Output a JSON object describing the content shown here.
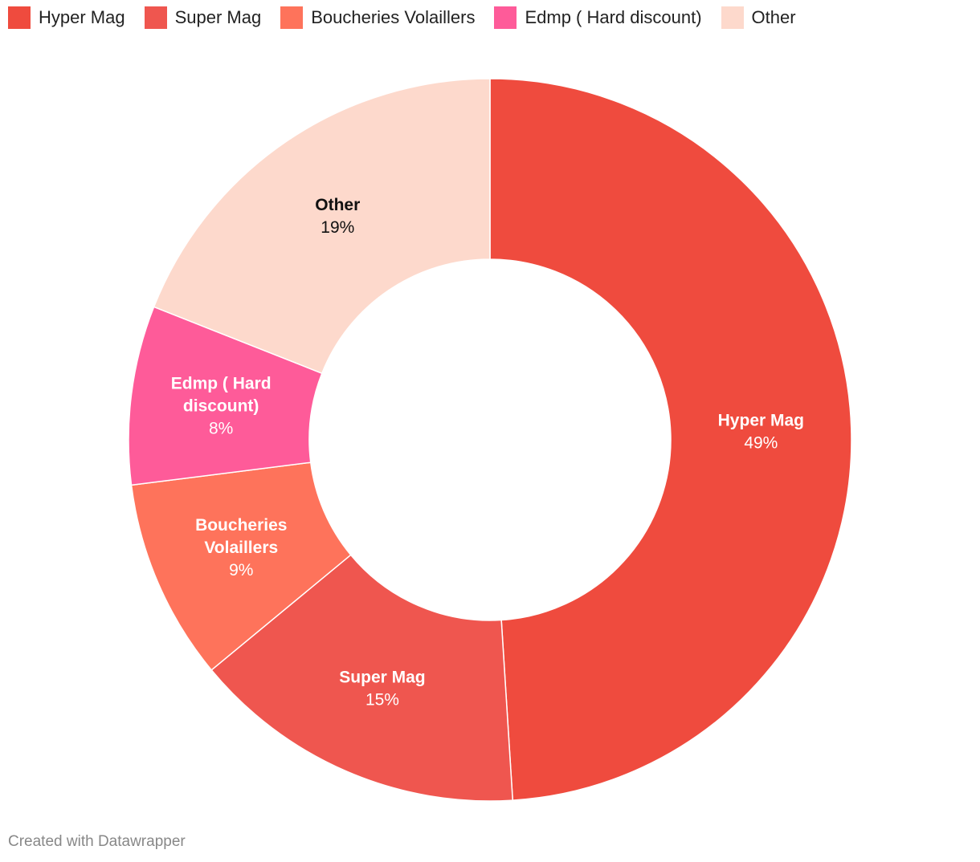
{
  "chart_data": {
    "type": "pie",
    "variant": "donut",
    "legend_position": "top-left",
    "slices": [
      {
        "label": "Hyper Mag",
        "value": 49,
        "display": "49%",
        "color": "#ef4b3e",
        "label_color": "#ffffff"
      },
      {
        "label": "Super Mag",
        "value": 15,
        "display": "15%",
        "color": "#ef564f",
        "label_color": "#ffffff"
      },
      {
        "label": "Boucheries Volaillers",
        "value": 9,
        "display": "9%",
        "color": "#fe735b",
        "label_color": "#ffffff"
      },
      {
        "label": "Edmp ( Hard discount)",
        "value": 8,
        "display": "8%",
        "color": "#fe5b99",
        "label_color": "#ffffff"
      },
      {
        "label": "Other",
        "value": 19,
        "display": "19%",
        "color": "#fdd9cc",
        "label_color": "#111111"
      }
    ]
  },
  "footer": {
    "credit": "Created with Datawrapper"
  }
}
